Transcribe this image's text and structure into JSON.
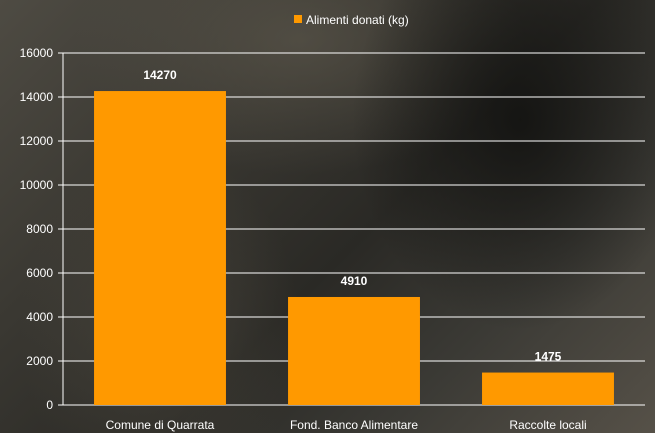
{
  "chart_data": {
    "type": "bar",
    "categories": [
      "Comune di Quarrata",
      "Fond. Banco Alimentare",
      "Raccolte locali"
    ],
    "series": [
      {
        "name": "Alimenti donati (kg)",
        "values": [
          14270,
          4910,
          1475
        ]
      }
    ],
    "ylim": [
      0,
      16000
    ],
    "yticks": [
      0,
      2000,
      4000,
      6000,
      8000,
      10000,
      12000,
      14000,
      16000
    ],
    "data_labels": [
      "14270",
      "4910",
      "1475"
    ],
    "grid": true,
    "legend_position": "top",
    "colors": {
      "bar": "#ff9900",
      "grid": "#ffffff",
      "text": "#ffffff"
    }
  }
}
